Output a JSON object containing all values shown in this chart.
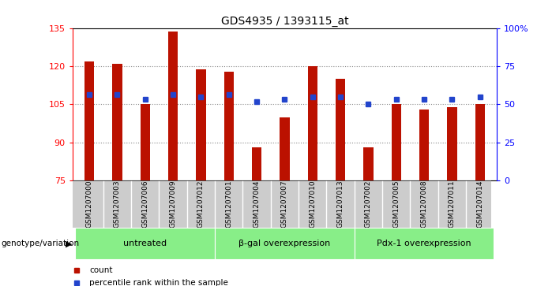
{
  "title": "GDS4935 / 1393115_at",
  "samples": [
    "GSM1207000",
    "GSM1207003",
    "GSM1207006",
    "GSM1207009",
    "GSM1207012",
    "GSM1207001",
    "GSM1207004",
    "GSM1207007",
    "GSM1207010",
    "GSM1207013",
    "GSM1207002",
    "GSM1207005",
    "GSM1207008",
    "GSM1207011",
    "GSM1207014"
  ],
  "counts": [
    122,
    121,
    105,
    134,
    119,
    118,
    88,
    100,
    120,
    115,
    88,
    105,
    103,
    104,
    105
  ],
  "percentiles": [
    109,
    109,
    107,
    109,
    108,
    109,
    106,
    107,
    108,
    108,
    105,
    107,
    107,
    107,
    108
  ],
  "groups": [
    {
      "label": "untreated",
      "start": 0,
      "end": 5
    },
    {
      "label": "β-gal overexpression",
      "start": 5,
      "end": 10
    },
    {
      "label": "Pdx-1 overexpression",
      "start": 10,
      "end": 15
    }
  ],
  "ylim_left": [
    75,
    135
  ],
  "ylim_right": [
    0,
    100
  ],
  "yticks_left": [
    75,
    90,
    105,
    120,
    135
  ],
  "yticks_right": [
    0,
    25,
    50,
    75,
    100
  ],
  "ytick_labels_right": [
    "0",
    "25",
    "50",
    "75",
    "100%"
  ],
  "bar_color": "#bb1100",
  "dot_color": "#2244cc",
  "grid_color": "#888888",
  "bg_color": "#ffffff",
  "group_bg": "#88ee88",
  "sample_bg": "#cccccc",
  "legend_count": "count",
  "legend_pct": "percentile rank within the sample",
  "xlabel_left": "genotype/variation"
}
